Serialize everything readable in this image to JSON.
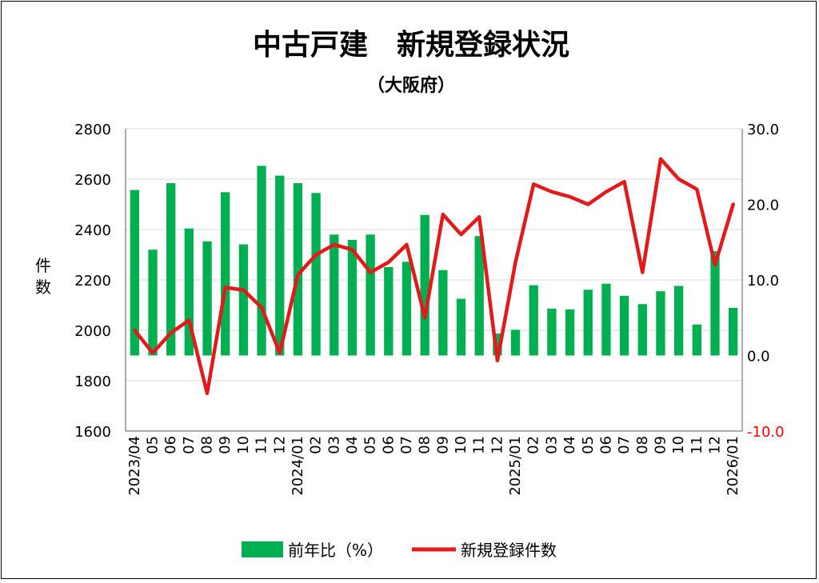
{
  "chart_data": {
    "type": "bar+line",
    "title": "中古戸建　新規登録状況",
    "subtitle": "（大阪府）",
    "ylabel_left": "件\n数",
    "ylabel_left_chars": [
      "件",
      "数"
    ],
    "categories": [
      "2023/04",
      "05",
      "06",
      "07",
      "08",
      "09",
      "10",
      "11",
      "12",
      "2024/01",
      "02",
      "03",
      "04",
      "05",
      "06",
      "07",
      "08",
      "09",
      "10",
      "11",
      "12",
      "2025/01",
      "02",
      "03",
      "04",
      "05",
      "06",
      "07",
      "08",
      "09",
      "10",
      "11",
      "12",
      "2026/01"
    ],
    "y_left": {
      "min": 1600,
      "max": 2800,
      "ticks": [
        "1600",
        "1800",
        "2000",
        "2200",
        "2400",
        "2600",
        "2800"
      ]
    },
    "y_right": {
      "min": -10,
      "max": 30,
      "ticks": [
        "-10.0",
        "0.0",
        "10.0",
        "20.0",
        "30.0"
      ],
      "negative_color": "#ff0000"
    },
    "series": [
      {
        "name": "前年比（%）",
        "type": "bar",
        "axis": "right",
        "color": "#00b050",
        "values": [
          21.9,
          14.0,
          22.8,
          16.8,
          15.1,
          21.6,
          14.7,
          25.1,
          23.8,
          22.8,
          21.5,
          16.0,
          15.3,
          16.0,
          11.7,
          12.4,
          18.6,
          11.3,
          7.5,
          15.8,
          2.9,
          3.4,
          9.3,
          6.2,
          6.1,
          8.7,
          9.5,
          7.9,
          6.8,
          8.5,
          9.2,
          4.1,
          13.8,
          6.3
        ]
      },
      {
        "name": "新規登録件数",
        "type": "line",
        "axis": "left",
        "color": "#e31a1c",
        "values": [
          2000,
          1910,
          1990,
          2040,
          1750,
          2170,
          2160,
          2090,
          1910,
          2220,
          2300,
          2340,
          2320,
          2230,
          2270,
          2340,
          2050,
          2460,
          2380,
          2450,
          1880,
          2270,
          2580,
          2550,
          2530,
          2500,
          2550,
          2590,
          2230,
          2680,
          2600,
          2560,
          2260,
          2500
        ]
      }
    ],
    "legend_position": "bottom",
    "grid": {
      "horizontal": true,
      "vertical": false
    }
  }
}
